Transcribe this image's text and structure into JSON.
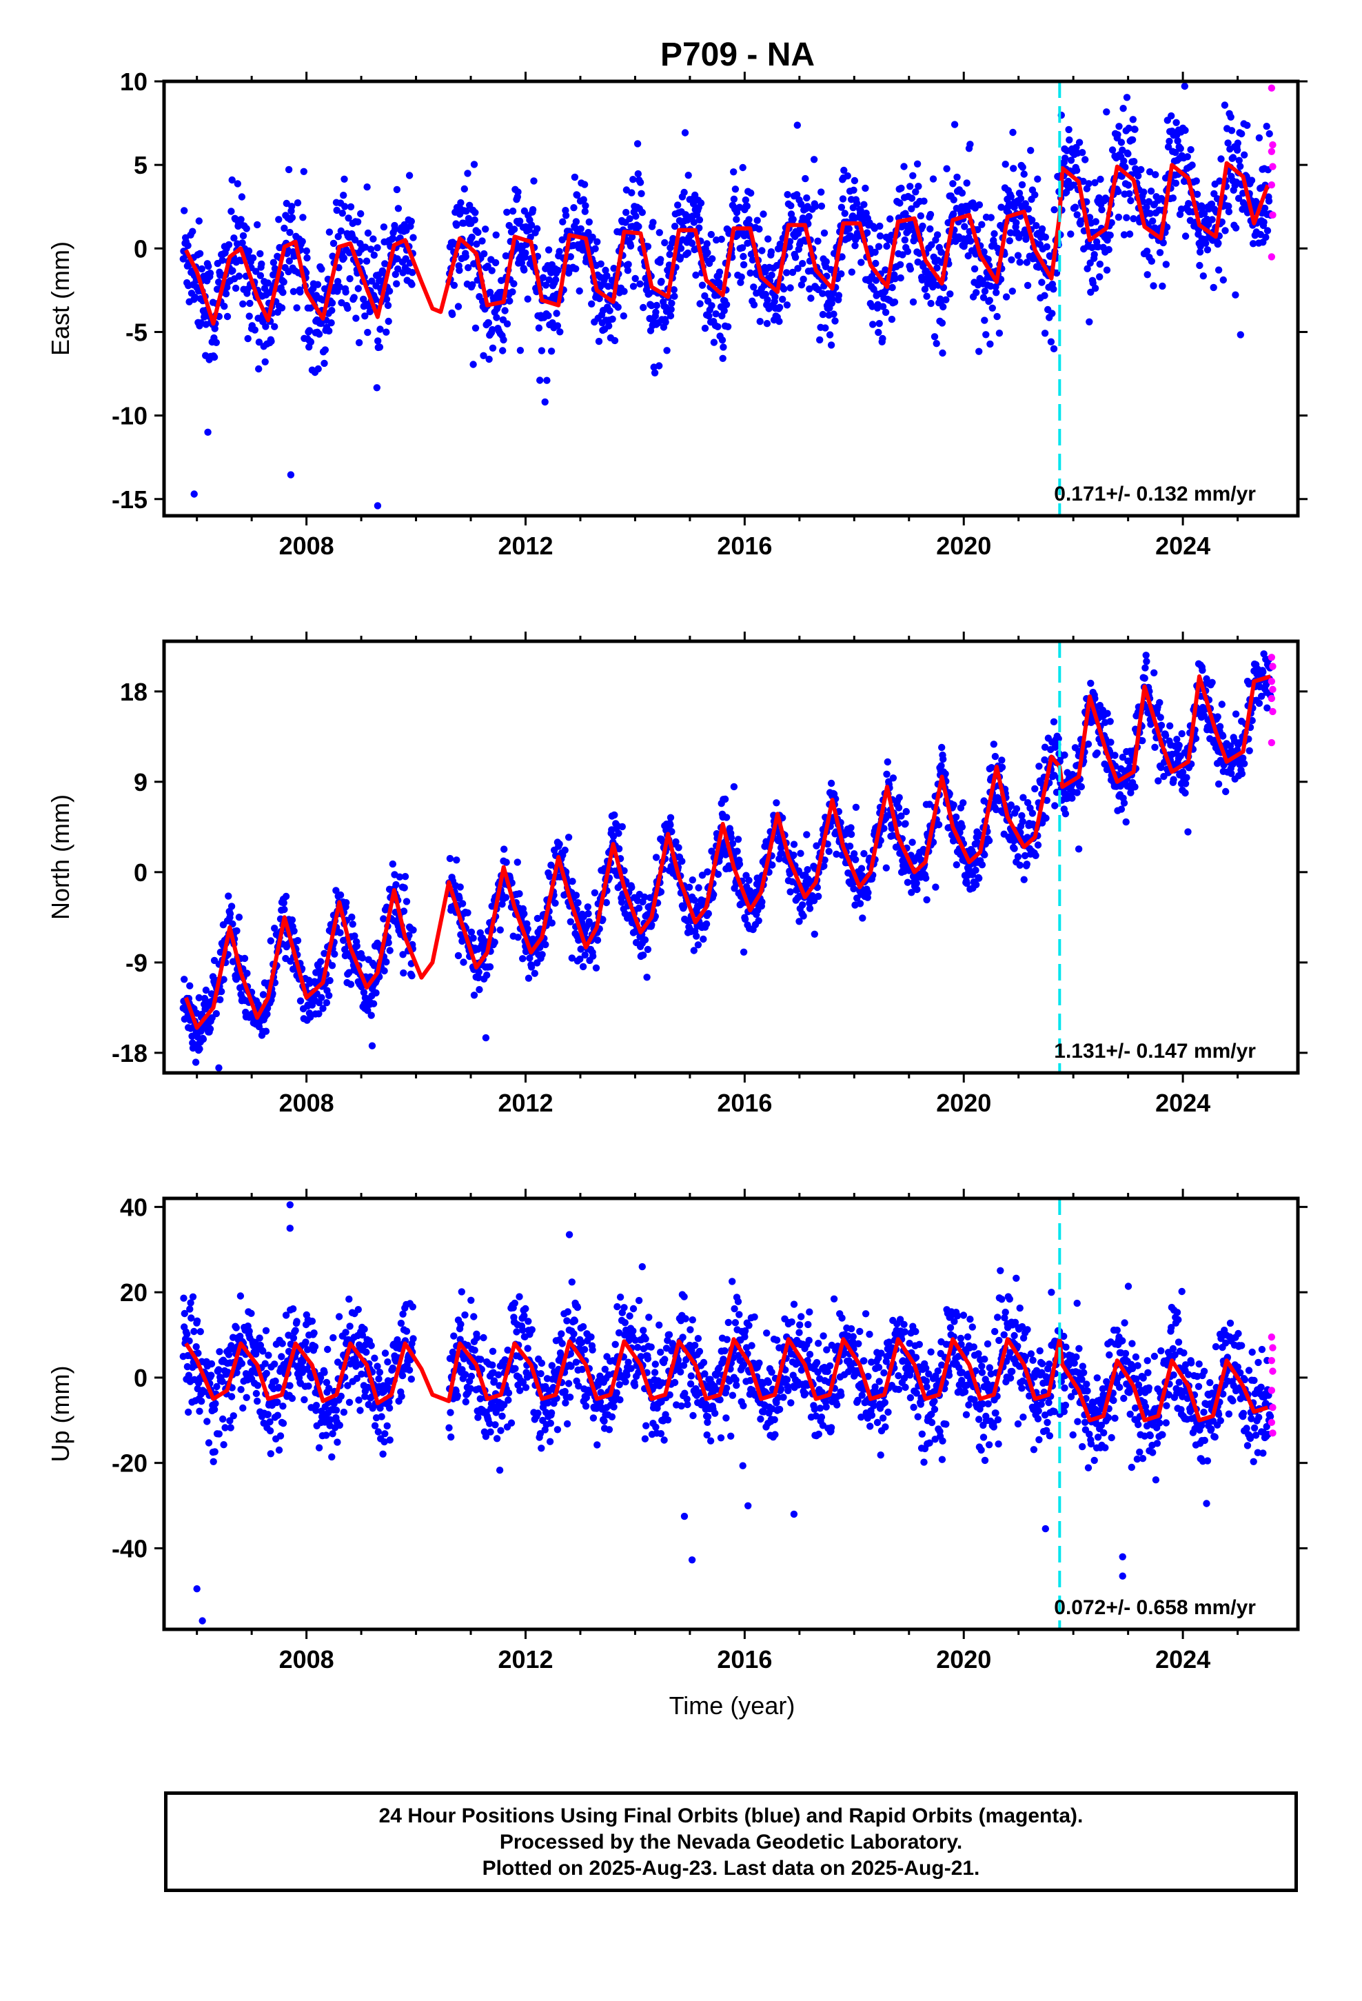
{
  "title": "P709 - NA",
  "xlabel": "Time (year)",
  "footer": {
    "line1": "24 Hour Positions Using Final Orbits (blue) and Rapid Orbits (magenta).",
    "line2": "Processed by the Nevada Geodetic Laboratory.",
    "line3": "Plotted on 2025-Aug-23. Last data on 2025-Aug-21."
  },
  "colors": {
    "final_orbits": "#0000ff",
    "rapid_orbits": "#ff00ff",
    "model": "#ff0000",
    "event_line": "#00e5ee"
  },
  "chart_data": [
    {
      "type": "scatter",
      "ylabel": "East (mm)",
      "xlim": [
        2005.4,
        2026.1
      ],
      "ylim": [
        -16,
        10
      ],
      "yticks": [
        10,
        5,
        0,
        -5,
        -10,
        -15
      ],
      "xticks": [
        2008,
        2012,
        2016,
        2020,
        2024
      ],
      "event_line_x": 2021.75,
      "rate_label": "0.171+/- 0.132 mm/yr",
      "data_range": [
        2005.75,
        2025.6
      ],
      "gap": [
        2009.95,
        2010.6
      ],
      "scatter": {
        "trend": {
          "intercept_2006": -1.5,
          "rate": 0.171,
          "step_2021_75": 2.6
        },
        "annual_amplitude": 2.6,
        "noise_sd": 1.7,
        "outliers": [
          [
            2005.95,
            -14.7
          ],
          [
            2009.3,
            -15.4
          ],
          [
            2006.2,
            -11.0
          ]
        ]
      },
      "rapid_points_y": [
        9.6,
        6.2,
        5.8,
        4.9,
        3.8,
        2.0,
        -0.5
      ],
      "series": [
        {
          "name": "model",
          "x": [
            2005.8,
            2006.0,
            2006.3,
            2006.6,
            2006.8,
            2007.1,
            2007.3,
            2007.6,
            2007.8,
            2008.0,
            2008.3,
            2008.6,
            2008.8,
            2009.1,
            2009.3,
            2009.6,
            2009.8,
            2010.1,
            2010.3,
            2010.45,
            2010.8,
            2011.1,
            2011.3,
            2011.6,
            2011.8,
            2012.1,
            2012.3,
            2012.6,
            2012.8,
            2013.1,
            2013.3,
            2013.6,
            2013.8,
            2014.1,
            2014.3,
            2014.6,
            2014.8,
            2015.1,
            2015.3,
            2015.6,
            2015.8,
            2016.1,
            2016.3,
            2016.6,
            2016.8,
            2017.1,
            2017.3,
            2017.6,
            2017.8,
            2018.1,
            2018.3,
            2018.6,
            2018.8,
            2019.1,
            2019.3,
            2019.6,
            2019.8,
            2020.1,
            2020.3,
            2020.6,
            2020.8,
            2021.1,
            2021.3,
            2021.6,
            2021.75,
            2021.8,
            2022.1,
            2022.3,
            2022.6,
            2022.8,
            2023.1,
            2023.3,
            2023.6,
            2023.8,
            2024.1,
            2024.3,
            2024.6,
            2024.8,
            2025.1,
            2025.3,
            2025.55
          ],
          "y": [
            -0.1,
            -1.4,
            -4.5,
            -0.5,
            0.0,
            -2.9,
            -4.3,
            0.1,
            0.4,
            -2.6,
            -4.2,
            0.1,
            0.3,
            -2.4,
            -4.1,
            0.2,
            0.5,
            -2.0,
            -3.6,
            -3.8,
            0.6,
            -0.3,
            -3.4,
            -3.2,
            0.7,
            0.4,
            -3.1,
            -3.4,
            0.8,
            0.6,
            -2.5,
            -3.2,
            1.0,
            0.9,
            -2.3,
            -2.9,
            1.1,
            1.1,
            -1.9,
            -2.8,
            1.2,
            1.2,
            -1.7,
            -2.6,
            1.4,
            1.4,
            -1.3,
            -2.4,
            1.5,
            1.5,
            -1.0,
            -2.3,
            1.6,
            1.8,
            -0.7,
            -2.1,
            1.7,
            2.0,
            -0.4,
            -2.0,
            1.9,
            2.2,
            -0.1,
            -1.8,
            2.0,
            4.8,
            4.0,
            0.5,
            1.2,
            4.9,
            4.1,
            1.3,
            0.6,
            5.0,
            4.2,
            1.4,
            0.7,
            5.1,
            4.3,
            1.5,
            3.8
          ]
        }
      ]
    },
    {
      "type": "scatter",
      "ylabel": "North (mm)",
      "xlim": [
        2005.4,
        2026.1
      ],
      "ylim": [
        -20,
        23
      ],
      "yticks": [
        18,
        9,
        0,
        -9,
        -18
      ],
      "xticks": [
        2008,
        2012,
        2016,
        2020,
        2024
      ],
      "event_line_x": 2021.75,
      "rate_label": "1.131+/- 0.147 mm/yr",
      "data_range": [
        2005.75,
        2025.6
      ],
      "gap": [
        2009.95,
        2010.6
      ],
      "scatter": {
        "trend": {
          "intercept_2006": -14.0,
          "rate": 1.131,
          "step_2021_75": 0.0
        },
        "annual_amplitude": 4.0,
        "noise_sd": 1.6,
        "outliers": [
          [
            2006.4,
            -19.5
          ],
          [
            2009.2,
            -17.3
          ],
          [
            2022.1,
            2.3
          ]
        ]
      },
      "rapid_points_y": [
        21.4,
        20.5,
        19.0,
        18.2,
        17.3,
        16.0,
        12.9
      ],
      "series": [
        {
          "name": "model",
          "x": [
            2005.8,
            2006.0,
            2006.3,
            2006.6,
            2006.8,
            2007.1,
            2007.3,
            2007.6,
            2007.8,
            2008.0,
            2008.3,
            2008.6,
            2008.8,
            2009.1,
            2009.3,
            2009.6,
            2009.8,
            2010.1,
            2010.3,
            2010.6,
            2010.8,
            2011.1,
            2011.3,
            2011.6,
            2011.8,
            2012.1,
            2012.3,
            2012.6,
            2012.8,
            2013.1,
            2013.3,
            2013.6,
            2013.8,
            2014.1,
            2014.3,
            2014.6,
            2014.8,
            2015.1,
            2015.3,
            2015.6,
            2015.8,
            2016.1,
            2016.3,
            2016.6,
            2016.8,
            2017.1,
            2017.3,
            2017.6,
            2017.8,
            2018.1,
            2018.3,
            2018.6,
            2018.8,
            2019.1,
            2019.3,
            2019.6,
            2019.8,
            2020.1,
            2020.3,
            2020.6,
            2020.8,
            2021.1,
            2021.3,
            2021.6,
            2021.75,
            2021.8,
            2022.1,
            2022.3,
            2022.6,
            2022.8,
            2023.1,
            2023.3,
            2023.6,
            2023.8,
            2024.1,
            2024.3,
            2024.6,
            2024.8,
            2025.1,
            2025.3,
            2025.6
          ],
          "y": [
            -12.5,
            -15.5,
            -13.5,
            -5.5,
            -10.0,
            -14.5,
            -12.5,
            -4.5,
            -8.5,
            -12.5,
            -11.0,
            -3.0,
            -7.5,
            -11.5,
            -10.0,
            -1.8,
            -6.5,
            -10.5,
            -9.0,
            -1.0,
            -4.5,
            -9.5,
            -8.0,
            0.5,
            -3.5,
            -8.0,
            -6.5,
            1.5,
            -2.5,
            -7.5,
            -5.5,
            2.8,
            -1.5,
            -6.0,
            -4.5,
            3.8,
            -0.5,
            -5.0,
            -3.5,
            4.8,
            0.5,
            -3.8,
            -2.0,
            5.8,
            1.5,
            -2.5,
            -1.0,
            7.2,
            2.5,
            -1.5,
            0.0,
            8.5,
            3.5,
            0.0,
            1.0,
            9.5,
            4.5,
            1.0,
            2.0,
            10.5,
            5.5,
            2.5,
            3.5,
            11.5,
            10.5,
            8.5,
            9.5,
            17.5,
            12.0,
            9.0,
            10.0,
            18.5,
            13.0,
            10.0,
            11.0,
            19.5,
            14.0,
            11.0,
            12.0,
            19.0,
            19.5
          ]
        }
      ]
    },
    {
      "type": "scatter",
      "ylabel": "Up (mm)",
      "xlim": [
        2005.4,
        2026.1
      ],
      "ylim": [
        -59,
        42
      ],
      "yticks": [
        40,
        20,
        0,
        -20,
        -40
      ],
      "xticks": [
        2008,
        2012,
        2016,
        2020,
        2024
      ],
      "xlabel": "Time (year)",
      "event_line_x": 2021.75,
      "rate_label": "0.072+/- 0.658 mm/yr",
      "data_range": [
        2005.75,
        2025.6
      ],
      "gap": [
        2009.95,
        2010.6
      ],
      "scatter": {
        "trend": {
          "intercept_2006": 1.0,
          "rate": 0.072,
          "step_2021_75": -4.0
        },
        "annual_amplitude": 7.0,
        "noise_sd": 6.0,
        "outliers": [
          [
            2006.1,
            -57.0
          ],
          [
            2006.0,
            -49.5
          ],
          [
            2007.7,
            40.5
          ],
          [
            2007.7,
            35.0
          ],
          [
            2022.9,
            -42.0
          ],
          [
            2022.9,
            -46.5
          ],
          [
            2014.9,
            -32.5
          ],
          [
            2016.9,
            -32.0
          ],
          [
            2021.6,
            20.0
          ],
          [
            2012.8,
            33.5
          ]
        ]
      },
      "rapid_points_y": [
        9.5,
        7.0,
        4.0,
        1.5,
        -3.0,
        -7.0,
        -10.5,
        -13.0
      ],
      "series": [
        {
          "name": "model",
          "x": [
            2005.8,
            2006.0,
            2006.3,
            2006.55,
            2006.8,
            2007.1,
            2007.3,
            2007.55,
            2007.8,
            2008.1,
            2008.3,
            2008.55,
            2008.8,
            2009.1,
            2009.3,
            2009.55,
            2009.8,
            2010.1,
            2010.3,
            2010.6,
            2010.8,
            2011.1,
            2011.3,
            2011.55,
            2011.8,
            2012.1,
            2012.3,
            2012.55,
            2012.8,
            2013.1,
            2013.3,
            2013.55,
            2013.8,
            2014.1,
            2014.3,
            2014.55,
            2014.8,
            2015.1,
            2015.3,
            2015.55,
            2015.8,
            2016.1,
            2016.3,
            2016.55,
            2016.8,
            2017.1,
            2017.3,
            2017.55,
            2017.8,
            2018.1,
            2018.3,
            2018.55,
            2018.8,
            2019.1,
            2019.3,
            2019.55,
            2019.8,
            2020.1,
            2020.3,
            2020.55,
            2020.8,
            2021.1,
            2021.3,
            2021.55,
            2021.75,
            2021.8,
            2022.1,
            2022.3,
            2022.55,
            2022.8,
            2023.1,
            2023.3,
            2023.55,
            2023.8,
            2024.1,
            2024.3,
            2024.55,
            2024.8,
            2025.1,
            2025.3,
            2025.55
          ],
          "y": [
            8.0,
            4.0,
            -5.0,
            -3.0,
            8.0,
            3.0,
            -5.0,
            -4.0,
            8.0,
            3.0,
            -5.5,
            -4.0,
            8.0,
            3.0,
            -6.0,
            -4.0,
            8.0,
            2.0,
            -4.0,
            -5.5,
            8.0,
            3.0,
            -5.0,
            -4.0,
            8.0,
            3.0,
            -5.0,
            -4.0,
            8.5,
            3.0,
            -5.0,
            -4.0,
            8.5,
            3.0,
            -5.0,
            -4.0,
            8.5,
            3.0,
            -5.0,
            -4.0,
            9.0,
            3.0,
            -5.0,
            -4.0,
            9.0,
            3.0,
            -5.0,
            -4.0,
            9.0,
            3.0,
            -5.0,
            -4.0,
            9.0,
            3.0,
            -5.0,
            -4.0,
            9.0,
            3.0,
            -5.0,
            -4.0,
            9.0,
            3.0,
            -5.0,
            -4.0,
            9.0,
            3.0,
            -3.0,
            -10.0,
            -9.0,
            4.0,
            -2.0,
            -10.0,
            -9.0,
            4.0,
            -2.0,
            -10.0,
            -9.0,
            4.0,
            -2.0,
            -8.0,
            -7.0
          ]
        }
      ]
    }
  ]
}
